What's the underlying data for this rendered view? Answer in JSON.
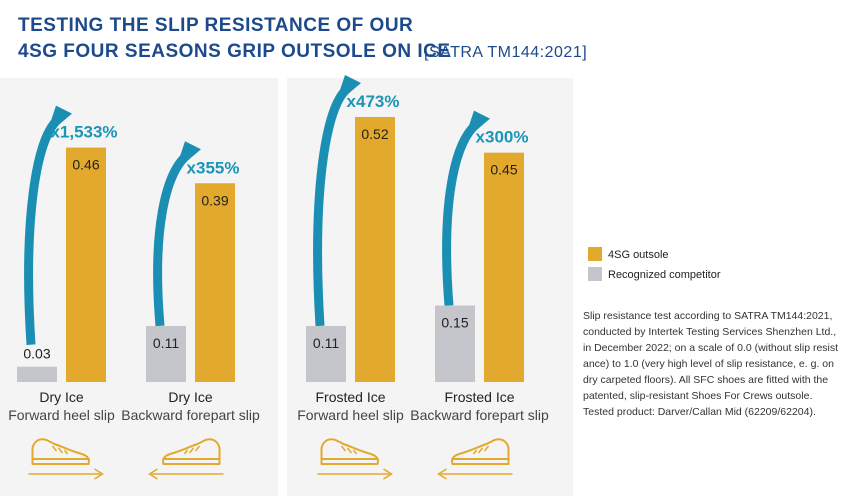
{
  "title": {
    "line1": "TESTING THE SLIP RESISTANCE OF OUR",
    "line2": "4SG FOUR SEASONS GRIP OUTSOLE ON ICE",
    "standard": "[SATRA TM144:2021]"
  },
  "colors": {
    "primary": "#e3a92c",
    "competitor": "#c5c6cc",
    "arrow": "#1b8fb3",
    "title": "#1c4a8c",
    "panel": "#f4f4f4"
  },
  "legend": {
    "items": [
      {
        "name": "4SG outsole",
        "color": "#e3a92c"
      },
      {
        "name": "Recognized competitor",
        "color": "#c5c6cc"
      }
    ]
  },
  "footnote": "Slip resistance test according to SATRA TM144:2021, conducted by Intertek Testing Services Shenzhen Ltd., in December 2022; on a scale of 0.0 (without slip resist ance) to 1.0 (very high level of slip resistance, e. g. on dry carpeted floors). All SFC shoes are fitted with the patented, slip-resistant Shoes For Crews outsole. Tested product: Darver/Callan Mid (62209/62204).",
  "chart_data": {
    "type": "bar",
    "categories": [
      "Dry Ice Forward heel slip",
      "Dry Ice Backward forepart slip",
      "Frosted Ice Forward heel slip",
      "Frosted Ice Backward forepart slip"
    ],
    "category_labels": [
      {
        "main": "Dry Ice",
        "sub": "Forward heel slip",
        "arrow": "right"
      },
      {
        "main": "Dry Ice",
        "sub": "Backward forepart slip",
        "arrow": "left"
      },
      {
        "main": "Frosted Ice",
        "sub": "Forward heel slip",
        "arrow": "right"
      },
      {
        "main": "Frosted Ice",
        "sub": "Backward forepart slip",
        "arrow": "left"
      }
    ],
    "series": [
      {
        "name": "Recognized competitor",
        "values": [
          0.03,
          0.11,
          0.11,
          0.15
        ],
        "labels": [
          "0.03",
          "0.11",
          "0.11",
          "0.15"
        ]
      },
      {
        "name": "4SG outsole",
        "values": [
          0.46,
          0.39,
          0.52,
          0.45
        ],
        "labels": [
          "0.46",
          "0.39",
          "0.52",
          "0.45"
        ]
      }
    ],
    "multipliers": [
      "x1,533%",
      "x355%",
      "x473%",
      "x300%"
    ],
    "ylim": [
      0,
      0.52
    ],
    "grid": false,
    "legend_position": "right"
  }
}
